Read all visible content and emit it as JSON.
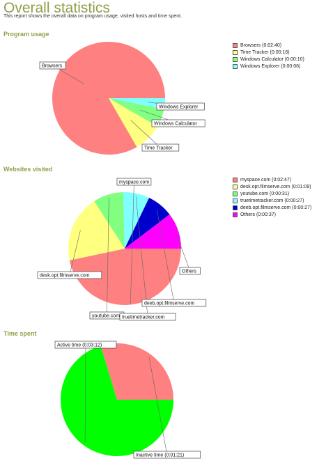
{
  "page": {
    "title": "Overall statistics",
    "subtitle": "This report shows the overall data on program usage, visited hosts and time spent."
  },
  "chart_data": [
    {
      "type": "pie",
      "title": "Program usage",
      "categories": [
        "Browsers",
        "Time Tracker",
        "Windows Calculator",
        "Windows Explorer"
      ],
      "values": [
        160,
        16,
        10,
        6
      ],
      "legend": [
        "Browsers (0:02:40)",
        "Time Tracker (0:00:16)",
        "Windows Calculator (0:00:10)",
        "Windows Explorer (0:00:06)"
      ],
      "colors": [
        "#ff8080",
        "#ffff80",
        "#80ff80",
        "#80ffff"
      ],
      "legend_position": "right"
    },
    {
      "type": "pie",
      "title": "Websites visited",
      "categories": [
        "myspace.com",
        "desk.opt.filmserve.com",
        "youtube.com",
        "truetimetracker.com",
        "deeb.opt.filmserve.com",
        "Others"
      ],
      "values": [
        167,
        69,
        31,
        27,
        27,
        37
      ],
      "legend": [
        "myspace.com (0:02:47)",
        "desk.opt.filmserve.com (0:01:09)",
        "youtube.com (0:00:31)",
        "truetimetracker.com (0:00:27)",
        "deeb.opt.filmserve.com (0:00:27)",
        "Others (0:00:37)"
      ],
      "colors": [
        "#ff8080",
        "#ffff80",
        "#80ff80",
        "#80ffff",
        "#0000cc",
        "#ff00ff"
      ],
      "legend_position": "right"
    },
    {
      "type": "pie",
      "title": "Time spent",
      "categories": [
        "Active time",
        "Inactive time"
      ],
      "values": [
        192,
        81
      ],
      "labels": [
        "Active time (0:03:12)",
        "Inactive time (0:01:21)"
      ],
      "colors": [
        "#00ff00",
        "#ff8080"
      ]
    }
  ]
}
